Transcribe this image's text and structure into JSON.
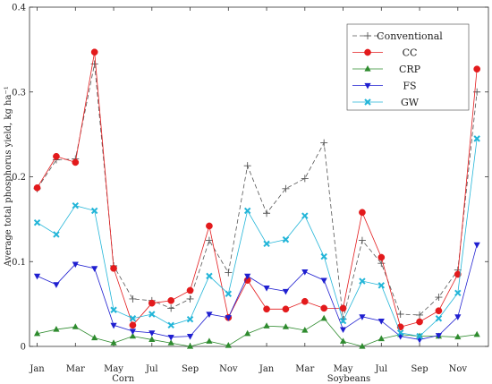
{
  "chart_data": {
    "type": "line",
    "ylabel": "Average total phosphorus yield, kg ha⁻¹",
    "ylim": [
      0,
      0.4
    ],
    "yticks": [
      0,
      0.1,
      0.2,
      0.3,
      0.4
    ],
    "ytick_labels": [
      "0",
      "0.1",
      "0.2",
      "0.3",
      "0.4"
    ],
    "x": [
      1,
      2,
      3,
      4,
      5,
      6,
      7,
      8,
      9,
      10,
      11,
      12,
      13,
      14,
      15,
      16,
      17,
      18,
      19,
      20,
      21,
      22,
      23,
      24
    ],
    "xticks": [
      1,
      3,
      5,
      7,
      9,
      11,
      13,
      15,
      17,
      19,
      21,
      23
    ],
    "xtick_labels": [
      "Jan",
      "Mar",
      "May",
      "Jul",
      "Sep",
      "Nov",
      "Jan",
      "Mar",
      "May",
      "Jul",
      "Sep",
      "Nov"
    ],
    "xlim": [
      0.6,
      24.6
    ],
    "groups": [
      {
        "label": "Corn",
        "center": 5.5
      },
      {
        "label": "Soybeans",
        "center": 17.3
      }
    ],
    "legend_position": "top-right",
    "grid": false,
    "series": [
      {
        "name": "Conventional",
        "color": "#555555",
        "marker": "plus",
        "dash": "5,3",
        "values": [
          0.186,
          0.22,
          0.221,
          0.333,
          0.095,
          0.056,
          0.054,
          0.045,
          0.056,
          0.125,
          0.087,
          0.213,
          0.157,
          0.186,
          0.198,
          0.24,
          0.032,
          0.125,
          0.098,
          0.038,
          0.037,
          0.058,
          0.09,
          0.3
        ]
      },
      {
        "name": "CC",
        "color": "#e31a1c",
        "marker": "circle",
        "dash": "",
        "values": [
          0.187,
          0.224,
          0.217,
          0.347,
          0.092,
          0.025,
          0.051,
          0.054,
          0.066,
          0.142,
          0.034,
          0.078,
          0.044,
          0.044,
          0.053,
          0.045,
          0.045,
          0.158,
          0.105,
          0.023,
          0.029,
          0.042,
          0.085,
          0.327
        ]
      },
      {
        "name": "CRP",
        "color": "#2e8b2e",
        "marker": "triangle-up",
        "dash": "",
        "values": [
          0.015,
          0.02,
          0.023,
          0.01,
          0.004,
          0.012,
          0.008,
          0.004,
          0.0,
          0.006,
          0.001,
          0.015,
          0.024,
          0.023,
          0.019,
          0.033,
          0.006,
          0.0,
          0.009,
          0.014,
          0.012,
          0.012,
          0.011,
          0.014
        ]
      },
      {
        "name": "FS",
        "color": "#1f1fd0",
        "marker": "triangle-down",
        "dash": "",
        "values": [
          0.083,
          0.073,
          0.097,
          0.092,
          0.025,
          0.018,
          0.016,
          0.011,
          0.012,
          0.038,
          0.034,
          0.083,
          0.069,
          0.065,
          0.088,
          0.078,
          0.02,
          0.035,
          0.03,
          0.012,
          0.008,
          0.013,
          0.035,
          0.12
        ]
      },
      {
        "name": "GW",
        "color": "#22b5d8",
        "marker": "x",
        "dash": "",
        "values": [
          0.146,
          0.132,
          0.166,
          0.16,
          0.043,
          0.033,
          0.038,
          0.025,
          0.032,
          0.083,
          0.062,
          0.16,
          0.121,
          0.126,
          0.154,
          0.106,
          0.03,
          0.077,
          0.072,
          0.016,
          0.012,
          0.033,
          0.063,
          0.245
        ]
      }
    ]
  }
}
